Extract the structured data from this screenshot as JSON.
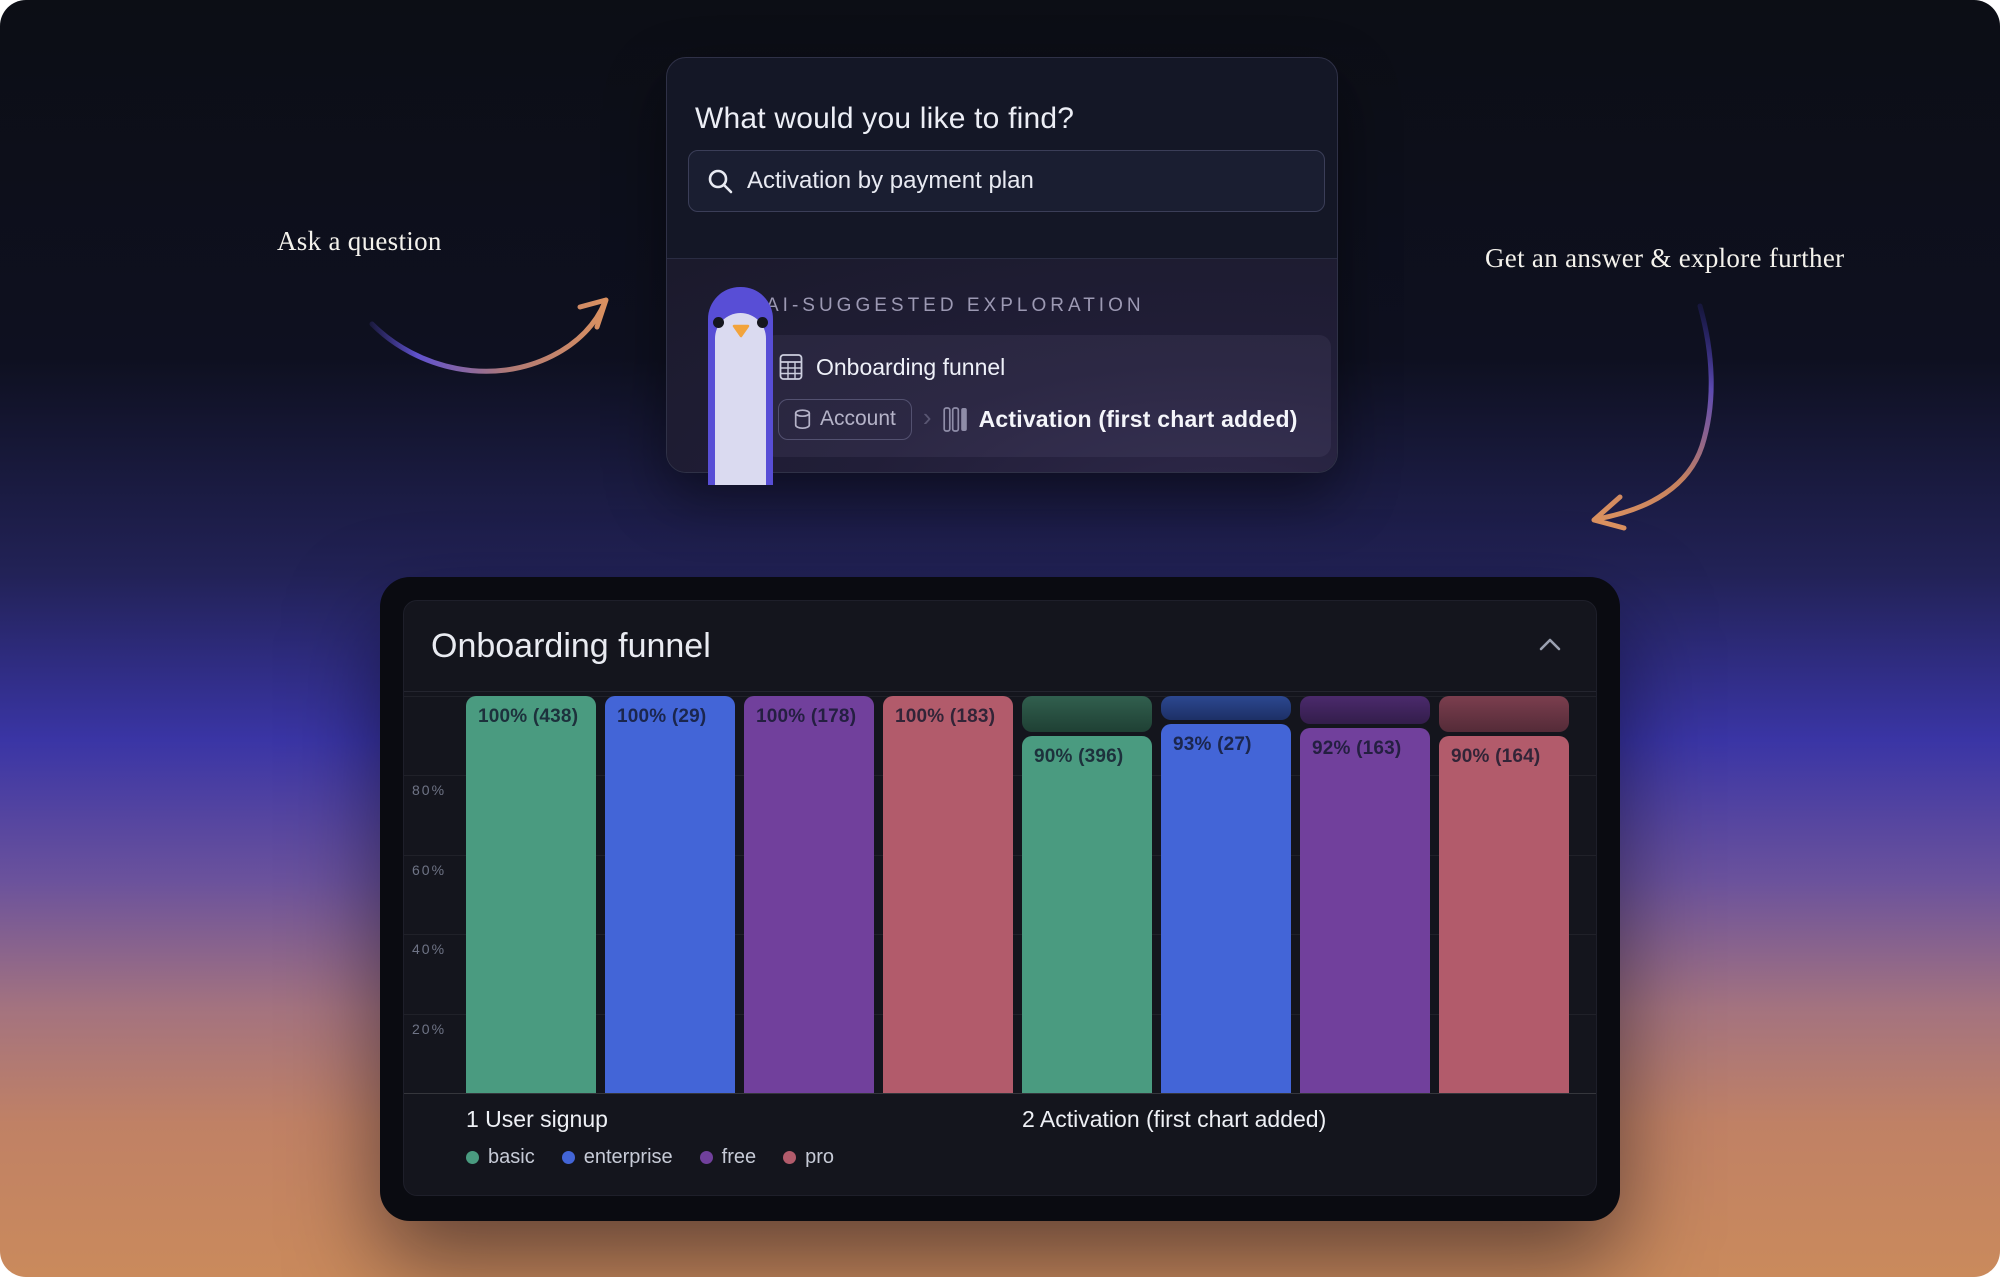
{
  "annotations": {
    "left": "Ask a question",
    "right": "Get an answer & explore further"
  },
  "ask_card": {
    "heading": "What would you like to find?",
    "search": {
      "value": "Activation by payment plan"
    },
    "ai": {
      "section_label": "AI-SUGGESTED EXPLORATION",
      "suggestion_title": "Onboarding funnel",
      "source": "Account",
      "separator": "›",
      "target": "Activation (first chart added)"
    }
  },
  "chart_panel": {
    "title": "Onboarding funnel"
  },
  "chart_data": {
    "type": "bar",
    "subtype": "grouped-funnel",
    "title": "Onboarding funnel",
    "categories": [
      "1 User signup",
      "2 Activation (first chart added)"
    ],
    "yticks": [
      80,
      60,
      40,
      20
    ],
    "ytick_suffix": "%",
    "ylim": [
      0,
      100
    ],
    "grid": true,
    "legend_position": "bottom-left",
    "bar_label_format": "{pct}% ({count})",
    "series": [
      {
        "name": "basic",
        "color": "#4a9b80",
        "cap_top": "#315f4e",
        "cap_bottom": "#1f4034",
        "values": [
          {
            "pct": 100,
            "count": 438
          },
          {
            "pct": 90,
            "count": 396
          }
        ]
      },
      {
        "name": "enterprise",
        "color": "#4365d7",
        "cap_top": "#2c4890",
        "cap_bottom": "#1d3066",
        "values": [
          {
            "pct": 100,
            "count": 29
          },
          {
            "pct": 93,
            "count": 27
          }
        ]
      },
      {
        "name": "free",
        "color": "#71409c",
        "cap_top": "#4b2a6c",
        "cap_bottom": "#331d4b",
        "values": [
          {
            "pct": 100,
            "count": 178
          },
          {
            "pct": 92,
            "count": 163
          }
        ]
      },
      {
        "name": "pro",
        "color": "#b25b6b",
        "cap_top": "#7b3e4e",
        "cap_bottom": "#542b38",
        "values": [
          {
            "pct": 100,
            "count": 183
          },
          {
            "pct": 90,
            "count": 164
          }
        ]
      }
    ]
  }
}
